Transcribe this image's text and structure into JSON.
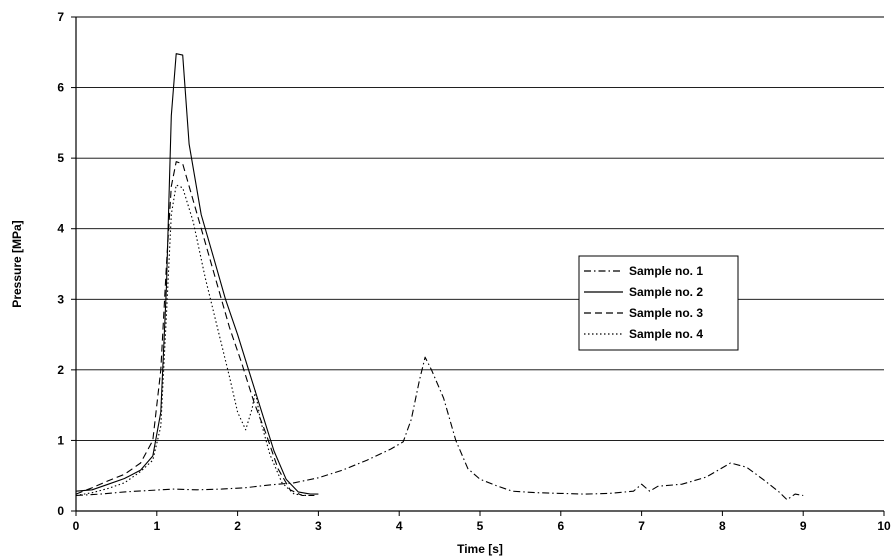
{
  "chart_data": {
    "type": "line",
    "title": "",
    "xlabel": "Time [s]",
    "ylabel": "Pressure [MPa]",
    "xlim": [
      0,
      10
    ],
    "ylim": [
      0,
      7
    ],
    "xticks": [
      "0",
      "1",
      "2",
      "3",
      "4",
      "5",
      "6",
      "7",
      "8",
      "9",
      "10"
    ],
    "yticks": [
      "0",
      "1",
      "2",
      "3",
      "4",
      "5",
      "6",
      "7"
    ],
    "grid": "horizontal",
    "legend_position": "right",
    "series": [
      {
        "name": "Sample no. 1",
        "style": "dash-dot",
        "color": "#000000",
        "points": [
          [
            0,
            0.22
          ],
          [
            0.3,
            0.24
          ],
          [
            0.6,
            0.27
          ],
          [
            0.9,
            0.29
          ],
          [
            1.2,
            0.31
          ],
          [
            1.5,
            0.3
          ],
          [
            1.8,
            0.31
          ],
          [
            2.1,
            0.33
          ],
          [
            2.4,
            0.37
          ],
          [
            2.7,
            0.4
          ],
          [
            3.0,
            0.47
          ],
          [
            3.3,
            0.58
          ],
          [
            3.6,
            0.72
          ],
          [
            3.9,
            0.88
          ],
          [
            4.05,
            0.98
          ],
          [
            4.15,
            1.3
          ],
          [
            4.25,
            1.85
          ],
          [
            4.32,
            2.18
          ],
          [
            4.4,
            2.0
          ],
          [
            4.55,
            1.6
          ],
          [
            4.7,
            1.0
          ],
          [
            4.85,
            0.6
          ],
          [
            5.0,
            0.45
          ],
          [
            5.2,
            0.36
          ],
          [
            5.4,
            0.28
          ],
          [
            5.7,
            0.26
          ],
          [
            6.0,
            0.25
          ],
          [
            6.3,
            0.24
          ],
          [
            6.6,
            0.25
          ],
          [
            6.9,
            0.28
          ],
          [
            7.0,
            0.38
          ],
          [
            7.1,
            0.28
          ],
          [
            7.2,
            0.35
          ],
          [
            7.5,
            0.38
          ],
          [
            7.8,
            0.48
          ],
          [
            8.1,
            0.68
          ],
          [
            8.3,
            0.62
          ],
          [
            8.5,
            0.45
          ],
          [
            8.7,
            0.27
          ],
          [
            8.8,
            0.16
          ],
          [
            8.9,
            0.24
          ],
          [
            9.0,
            0.22
          ]
        ]
      },
      {
        "name": "Sample no. 2",
        "style": "solid",
        "color": "#000000",
        "points": [
          [
            0,
            0.28
          ],
          [
            0.2,
            0.3
          ],
          [
            0.4,
            0.38
          ],
          [
            0.6,
            0.46
          ],
          [
            0.8,
            0.58
          ],
          [
            0.95,
            0.78
          ],
          [
            1.05,
            1.4
          ],
          [
            1.12,
            3.2
          ],
          [
            1.18,
            5.6
          ],
          [
            1.24,
            6.48
          ],
          [
            1.32,
            6.46
          ],
          [
            1.4,
            5.2
          ],
          [
            1.55,
            4.2
          ],
          [
            1.7,
            3.6
          ],
          [
            1.85,
            3.0
          ],
          [
            2.0,
            2.5
          ],
          [
            2.15,
            1.95
          ],
          [
            2.3,
            1.4
          ],
          [
            2.45,
            0.85
          ],
          [
            2.6,
            0.45
          ],
          [
            2.75,
            0.27
          ],
          [
            2.9,
            0.24
          ],
          [
            3.0,
            0.24
          ]
        ]
      },
      {
        "name": "Sample no. 3",
        "style": "dashed",
        "color": "#000000",
        "points": [
          [
            0,
            0.24
          ],
          [
            0.2,
            0.33
          ],
          [
            0.4,
            0.43
          ],
          [
            0.6,
            0.52
          ],
          [
            0.8,
            0.68
          ],
          [
            0.95,
            1.0
          ],
          [
            1.05,
            2.0
          ],
          [
            1.12,
            3.5
          ],
          [
            1.18,
            4.6
          ],
          [
            1.24,
            4.95
          ],
          [
            1.32,
            4.92
          ],
          [
            1.45,
            4.4
          ],
          [
            1.6,
            3.8
          ],
          [
            1.75,
            3.2
          ],
          [
            1.9,
            2.6
          ],
          [
            2.05,
            2.1
          ],
          [
            2.2,
            1.55
          ],
          [
            2.35,
            1.1
          ],
          [
            2.5,
            0.6
          ],
          [
            2.65,
            0.3
          ],
          [
            2.8,
            0.22
          ],
          [
            2.95,
            0.22
          ]
        ]
      },
      {
        "name": "Sample no. 4",
        "style": "dotted",
        "color": "#000000",
        "points": [
          [
            0,
            0.22
          ],
          [
            0.2,
            0.26
          ],
          [
            0.4,
            0.32
          ],
          [
            0.6,
            0.4
          ],
          [
            0.8,
            0.56
          ],
          [
            0.95,
            0.72
          ],
          [
            1.05,
            1.2
          ],
          [
            1.12,
            2.8
          ],
          [
            1.18,
            4.2
          ],
          [
            1.24,
            4.62
          ],
          [
            1.32,
            4.58
          ],
          [
            1.45,
            4.1
          ],
          [
            1.6,
            3.3
          ],
          [
            1.75,
            2.6
          ],
          [
            1.9,
            1.9
          ],
          [
            2.0,
            1.4
          ],
          [
            2.1,
            1.15
          ],
          [
            2.18,
            1.45
          ],
          [
            2.22,
            1.7
          ],
          [
            2.28,
            1.3
          ],
          [
            2.4,
            0.8
          ],
          [
            2.55,
            0.4
          ],
          [
            2.7,
            0.24
          ],
          [
            2.85,
            0.22
          ]
        ]
      }
    ]
  }
}
